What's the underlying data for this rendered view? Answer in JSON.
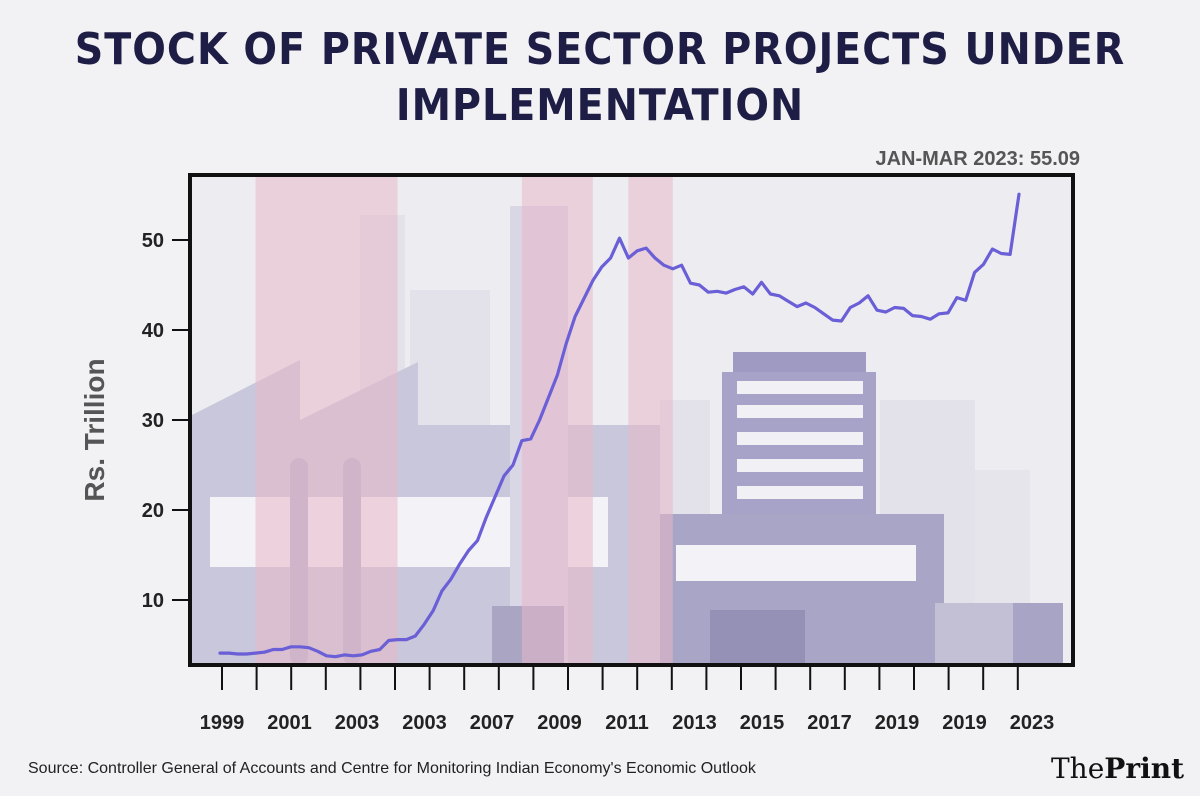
{
  "chart_data": {
    "type": "line",
    "title": "STOCK OF PRIVATE SECTOR PROJECTS UNDER IMPLEMENTATION",
    "annotation": "JAN-MAR 2023: 55.09",
    "ylabel": "Rs. Trillion",
    "xlabel": "",
    "ylim": [
      3,
      57
    ],
    "yticks": [
      10,
      20,
      30,
      40,
      50
    ],
    "xticks": [
      "1999",
      "2001",
      "2003",
      "2003",
      "2007",
      "2009",
      "2011",
      "2013",
      "2015",
      "2017",
      "2019",
      "2019",
      "2023"
    ],
    "shaded_periods": [
      {
        "start": 4.0,
        "end": 20.0
      },
      {
        "start": 34.0,
        "end": 42.0
      },
      {
        "start": 46.0,
        "end": 51.0
      }
    ],
    "series": [
      {
        "name": "Stock of private sector projects under implementation",
        "color": "#6a5fd6",
        "values": [
          4.1,
          4.1,
          4.0,
          4.0,
          4.1,
          4.2,
          4.5,
          4.5,
          4.8,
          4.8,
          4.7,
          4.3,
          3.8,
          3.7,
          3.9,
          3.8,
          3.9,
          4.3,
          4.5,
          5.5,
          5.6,
          5.6,
          6.0,
          7.3,
          8.8,
          11.0,
          12.3,
          14.0,
          15.5,
          16.6,
          19.2,
          21.5,
          23.8,
          25.0,
          27.7,
          27.9,
          30.0,
          32.5,
          35.0,
          38.5,
          41.5,
          43.5,
          45.5,
          47.0,
          48.0,
          50.2,
          48.0,
          48.8,
          49.1,
          48.0,
          47.2,
          46.8,
          47.2,
          45.2,
          45.0,
          44.2,
          44.3,
          44.1,
          44.5,
          44.8,
          44.0,
          45.3,
          44.0,
          43.8,
          43.2,
          42.6,
          43.0,
          42.5,
          41.8,
          41.1,
          41.0,
          42.5,
          43.0,
          43.8,
          42.2,
          42.0,
          42.5,
          42.4,
          41.6,
          41.5,
          41.2,
          41.8,
          41.9,
          43.6,
          43.3,
          46.4,
          47.3,
          49.0,
          48.5,
          48.4,
          55.09
        ]
      }
    ]
  },
  "footer": {
    "source": "Source: Controller General of Accounts and Centre for Monitoring Indian Economy's Economic Outlook",
    "brand_light": "The",
    "brand_bold": "Print"
  },
  "colors": {
    "title": "#1e1d45",
    "line": "#6a5fd6",
    "recession": "#e8b8c8",
    "frame": "#111111"
  }
}
